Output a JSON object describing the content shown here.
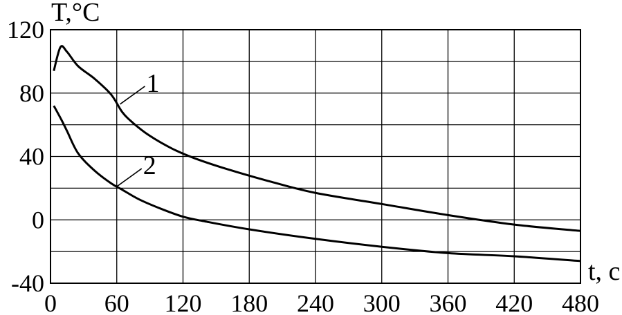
{
  "chart_data": {
    "type": "line",
    "title": "",
    "xlabel": "t, c",
    "ylabel": "T,°C",
    "xlim": [
      0,
      480
    ],
    "ylim": [
      -40,
      120
    ],
    "grid": true,
    "x_ticks": [
      0,
      60,
      120,
      180,
      240,
      300,
      360,
      420,
      480
    ],
    "x_tick_labels": [
      "0",
      "60",
      "120",
      "180",
      "240",
      "300",
      "360",
      "420",
      "480"
    ],
    "x_gridlines": [
      0,
      60,
      120,
      180,
      240,
      300,
      360,
      420,
      480
    ],
    "y_ticks": [
      -40,
      0,
      40,
      80,
      120
    ],
    "y_tick_labels": [
      "-40",
      "0",
      "40",
      "80",
      "120"
    ],
    "y_gridlines": [
      -40,
      -20,
      0,
      20,
      40,
      60,
      80,
      100,
      120
    ],
    "series": [
      {
        "name": "1",
        "color": "#000000",
        "x": [
          3,
          9,
          15,
          25,
          40,
          55,
          65,
          75,
          90,
          110,
          130,
          160,
          200,
          240,
          300,
          360,
          420,
          480
        ],
        "y": [
          94,
          109,
          106,
          97,
          89,
          79,
          68,
          61,
          53,
          45,
          39,
          32,
          24,
          17,
          10,
          3,
          -3,
          -7
        ]
      },
      {
        "name": "2",
        "color": "#000000",
        "x": [
          3,
          10,
          15,
          25,
          40,
          55,
          65,
          80,
          100,
          120,
          140,
          180,
          240,
          300,
          360,
          420,
          480
        ],
        "y": [
          72,
          63,
          56,
          42,
          31,
          23,
          19,
          13,
          7,
          2,
          -1,
          -6,
          -12,
          -17,
          -21,
          -23,
          -26
        ]
      }
    ],
    "annotations": [
      {
        "text": "1",
        "series": "1",
        "anchor_x": 63,
        "anchor_y": 73
      },
      {
        "text": "2",
        "series": "2",
        "anchor_x": 60,
        "anchor_y": 21
      }
    ]
  }
}
